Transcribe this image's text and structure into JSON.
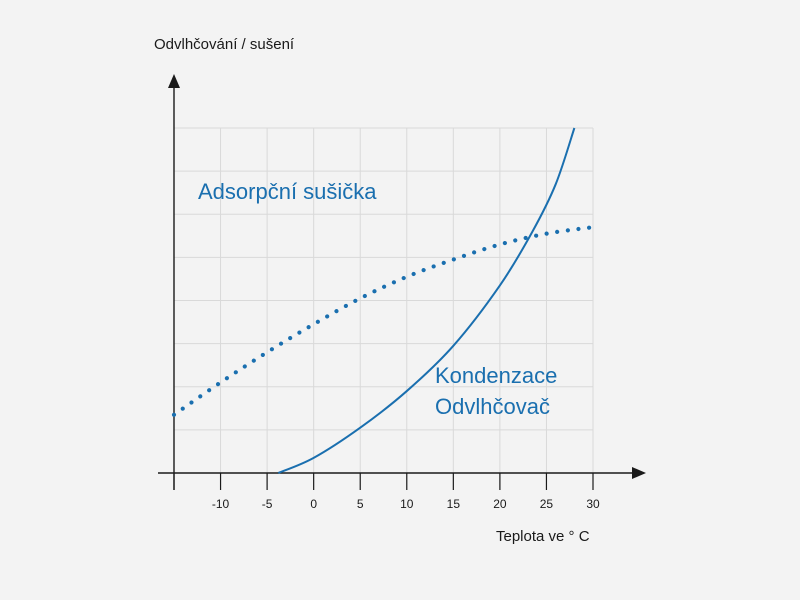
{
  "chart_data": {
    "type": "line",
    "xlabel": "Teplota ve ° C",
    "ylabel": "Odvlhčování / sušení",
    "xlim": [
      -15,
      30
    ],
    "ylim": [
      0,
      8
    ],
    "x_ticks": [
      -10,
      -5,
      0,
      5,
      10,
      15,
      20,
      25,
      30
    ],
    "grid": true,
    "series_color": "#1a6faf",
    "series": [
      {
        "name": "Adsorpční sušička",
        "style": "dotted",
        "x": [
          -15,
          -10,
          -5,
          0,
          5,
          10,
          15,
          20,
          25,
          30
        ],
        "y": [
          1.35,
          2.1,
          2.8,
          3.45,
          4.05,
          4.55,
          4.95,
          5.3,
          5.55,
          5.7
        ]
      },
      {
        "name": "Kondenzace Odvlhčovač",
        "label_lines": [
          "Kondenzace",
          "Odvlhčovač"
        ],
        "style": "solid",
        "x": [
          -3.8,
          0,
          5,
          10,
          15,
          20,
          23.5,
          26,
          28
        ],
        "y": [
          0,
          0.35,
          1.05,
          1.9,
          2.95,
          4.35,
          5.6,
          6.7,
          8.0
        ]
      }
    ]
  }
}
